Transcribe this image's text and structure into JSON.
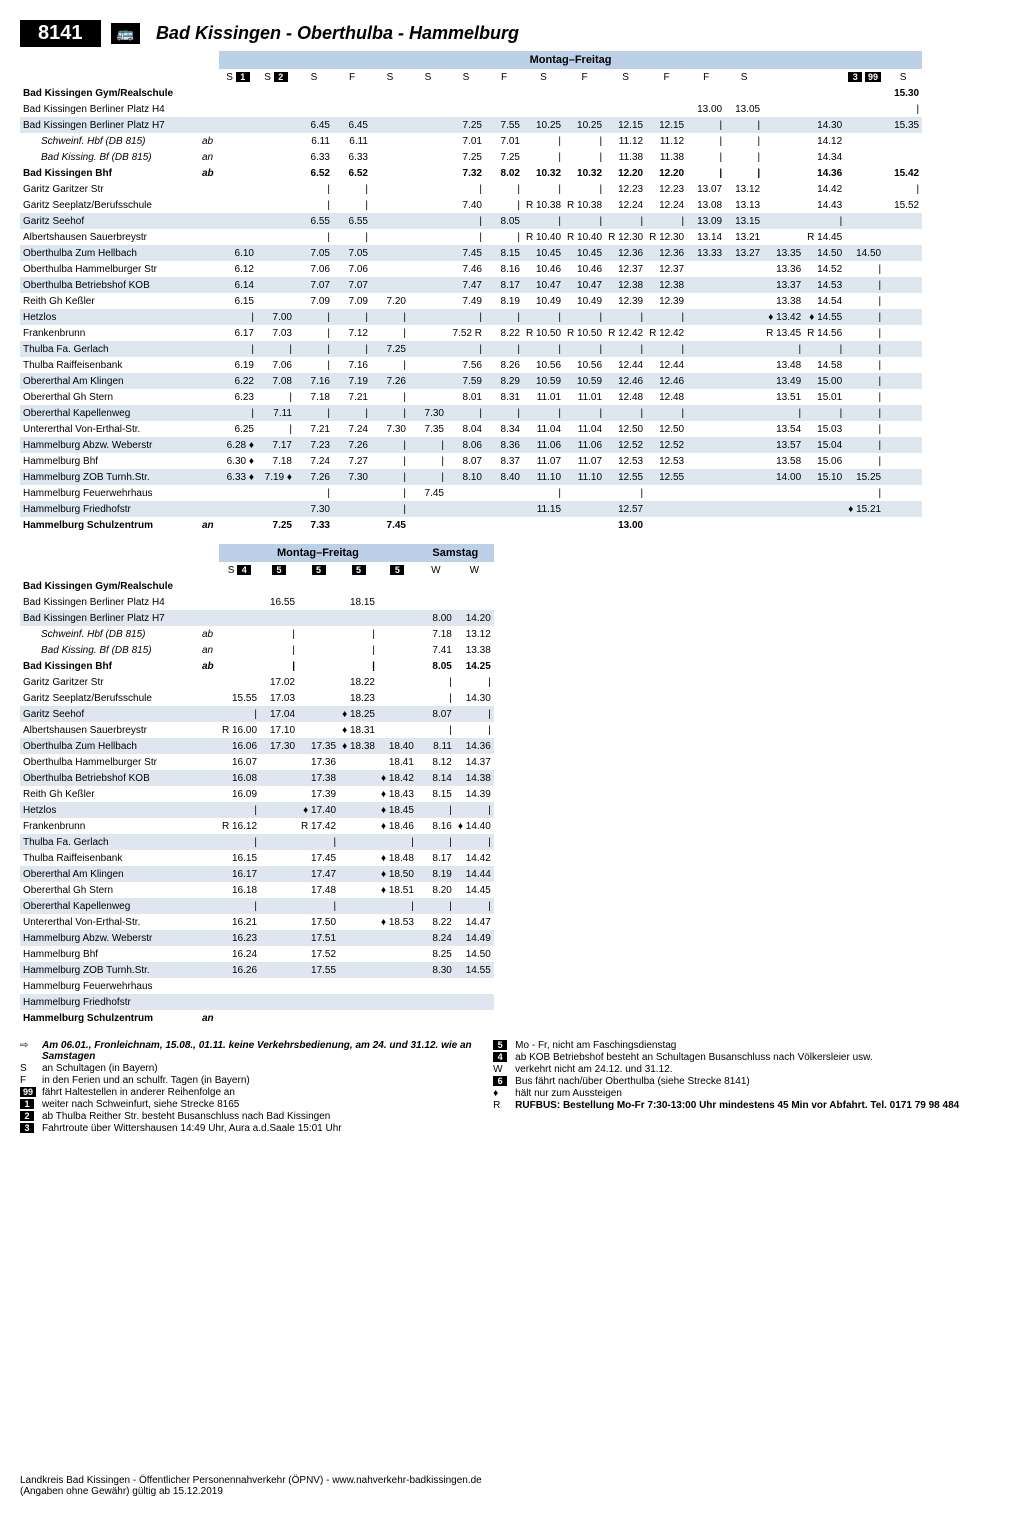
{
  "route_number": "8141",
  "route_title": "Bad Kissingen - Oberthulba - Hammelburg",
  "period1": "Montag–Freitag",
  "period2": "Samstag",
  "stops": [
    {
      "name": "Bad Kissingen Gym/Realschule",
      "q": "",
      "bold": true
    },
    {
      "name": "Bad Kissingen Berliner Platz H4",
      "q": ""
    },
    {
      "name": "Bad Kissingen Berliner Platz H7",
      "q": ""
    },
    {
      "name": "Schweinf. Hbf (DB 815)",
      "q": "ab",
      "indent": true
    },
    {
      "name": "Bad Kissing. Bf (DB 815)",
      "q": "an",
      "indent": true
    },
    {
      "name": "Bad Kissingen Bhf",
      "q": "ab",
      "bold": true
    },
    {
      "name": "Garitz Garitzer Str",
      "q": ""
    },
    {
      "name": "Garitz Seeplatz/Berufsschule",
      "q": ""
    },
    {
      "name": "Garitz Seehof",
      "q": ""
    },
    {
      "name": "Albertshausen Sauerbreystr",
      "q": ""
    },
    {
      "name": "Oberthulba Zum Hellbach",
      "q": ""
    },
    {
      "name": "Oberthulba Hammelburger Str",
      "q": ""
    },
    {
      "name": "Oberthulba Betriebshof KOB",
      "q": ""
    },
    {
      "name": "Reith Gh Keßler",
      "q": ""
    },
    {
      "name": "Hetzlos",
      "q": ""
    },
    {
      "name": "Frankenbrunn",
      "q": ""
    },
    {
      "name": "Thulba Fa. Gerlach",
      "q": ""
    },
    {
      "name": "Thulba Raiffeisenbank",
      "q": ""
    },
    {
      "name": "Obererthal Am Klingen",
      "q": ""
    },
    {
      "name": "Obererthal Gh Stern",
      "q": ""
    },
    {
      "name": "Obererthal Kapellenweg",
      "q": ""
    },
    {
      "name": "Untererthal Von-Erthal-Str.",
      "q": ""
    },
    {
      "name": "Hammelburg Abzw. Weberstr",
      "q": ""
    },
    {
      "name": "Hammelburg Bhf",
      "q": ""
    },
    {
      "name": "Hammelburg ZOB Turnh.Str.",
      "q": ""
    },
    {
      "name": "Hammelburg Feuerwehrhaus",
      "q": ""
    },
    {
      "name": "Hammelburg Friedhofstr",
      "q": ""
    },
    {
      "name": "Hammelburg Schulzentrum",
      "q": "an",
      "bold": true
    }
  ],
  "table1_headers": [
    "S ▮1",
    "S ▮2",
    "S",
    "F",
    "S",
    "S",
    "S",
    "F",
    "S",
    "F",
    "S",
    "F",
    "F",
    "S",
    "",
    "",
    "▮3 ▮99",
    "S"
  ],
  "table1_header_codes": [
    "S <span class='badge'>1</span>",
    "S <span class='badge'>2</span>",
    "S",
    "F",
    "S",
    "S",
    "S",
    "F",
    "S",
    "F",
    "S",
    "F",
    "F",
    "S",
    "",
    "",
    "<span class='badge'>3</span> <span class='badge'>99</span>",
    "S"
  ],
  "table1": [
    [
      "",
      "",
      "",
      "",
      "",
      "",
      "",
      "",
      "",
      "",
      "",
      "",
      "",
      "",
      "",
      "",
      "",
      "15.30"
    ],
    [
      "",
      "",
      "",
      "",
      "",
      "",
      "",
      "",
      "",
      "",
      "",
      "",
      "13.00",
      "13.05",
      "",
      "",
      "",
      "|"
    ],
    [
      "",
      "",
      "6.45",
      "6.45",
      "",
      "",
      "7.25",
      "7.55",
      "10.25",
      "10.25",
      "12.15",
      "12.15",
      "|",
      "|",
      "",
      "14.30",
      "",
      "15.35"
    ],
    [
      "",
      "",
      "6.11",
      "6.11",
      "",
      "",
      "7.01",
      "7.01",
      "|",
      "|",
      "11.12",
      "11.12",
      "|",
      "|",
      "",
      "14.12",
      "",
      ""
    ],
    [
      "",
      "",
      "6.33",
      "6.33",
      "",
      "",
      "7.25",
      "7.25",
      "|",
      "|",
      "11.38",
      "11.38",
      "|",
      "|",
      "",
      "14.34",
      "",
      ""
    ],
    [
      "",
      "",
      "6.52",
      "6.52",
      "",
      "",
      "7.32",
      "8.02",
      "10.32",
      "10.32",
      "12.20",
      "12.20",
      "|",
      "|",
      "",
      "14.36",
      "",
      "15.42"
    ],
    [
      "",
      "",
      "|",
      "|",
      "",
      "",
      "|",
      "|",
      "|",
      "|",
      "12.23",
      "12.23",
      "13.07",
      "13.12",
      "",
      "14.42",
      "",
      "|"
    ],
    [
      "",
      "",
      "|",
      "|",
      "",
      "",
      "7.40",
      "|",
      "R 10.38",
      "R 10.38",
      "12.24",
      "12.24",
      "13.08",
      "13.13",
      "",
      "14.43",
      "",
      "15.52"
    ],
    [
      "",
      "",
      "6.55",
      "6.55",
      "",
      "",
      "|",
      "8.05",
      "|",
      "|",
      "|",
      "|",
      "13.09",
      "13.15",
      "",
      "|",
      "",
      ""
    ],
    [
      "",
      "",
      "|",
      "|",
      "",
      "",
      "|",
      "|",
      "R 10.40",
      "R 10.40",
      "R 12.30",
      "R 12.30",
      "13.14",
      "13.21",
      "",
      "R 14.45",
      "",
      ""
    ],
    [
      "6.10",
      "",
      "7.05",
      "7.05",
      "",
      "",
      "7.45",
      "8.15",
      "10.45",
      "10.45",
      "12.36",
      "12.36",
      "13.33",
      "13.27",
      "13.35",
      "14.50",
      "14.50",
      ""
    ],
    [
      "6.12",
      "",
      "7.06",
      "7.06",
      "",
      "",
      "7.46",
      "8.16",
      "10.46",
      "10.46",
      "12.37",
      "12.37",
      "",
      "",
      "13.36",
      "14.52",
      "|",
      ""
    ],
    [
      "6.14",
      "",
      "7.07",
      "7.07",
      "",
      "",
      "7.47",
      "8.17",
      "10.47",
      "10.47",
      "12.38",
      "12.38",
      "",
      "",
      "13.37",
      "14.53",
      "|",
      ""
    ],
    [
      "6.15",
      "",
      "7.09",
      "7.09",
      "7.20",
      "",
      "7.49",
      "8.19",
      "10.49",
      "10.49",
      "12.39",
      "12.39",
      "",
      "",
      "13.38",
      "14.54",
      "|",
      ""
    ],
    [
      "|",
      "7.00",
      "|",
      "|",
      "|",
      "",
      "|",
      "|",
      "|",
      "|",
      "|",
      "|",
      "",
      "",
      "♦ 13.42",
      "♦ 14.55",
      "|",
      ""
    ],
    [
      "6.17",
      "7.03",
      "|",
      "7.12",
      "|",
      "",
      "7.52 R",
      "8.22",
      "R 10.50",
      "R 10.50",
      "R 12.42",
      "R 12.42",
      "",
      "",
      "R 13.45",
      "R 14.56",
      "|",
      ""
    ],
    [
      "|",
      "|",
      "|",
      "|",
      "7.25",
      "",
      "|",
      "|",
      "|",
      "|",
      "|",
      "|",
      "",
      "",
      "|",
      "|",
      "|",
      ""
    ],
    [
      "6.19",
      "7.06",
      "|",
      "7.16",
      "|",
      "",
      "7.56",
      "8.26",
      "10.56",
      "10.56",
      "12.44",
      "12.44",
      "",
      "",
      "13.48",
      "14.58",
      "|",
      ""
    ],
    [
      "6.22",
      "7.08",
      "7.16",
      "7.19",
      "7.26",
      "",
      "7.59",
      "8.29",
      "10.59",
      "10.59",
      "12.46",
      "12.46",
      "",
      "",
      "13.49",
      "15.00",
      "|",
      ""
    ],
    [
      "6.23",
      "|",
      "7.18",
      "7.21",
      "|",
      "",
      "8.01",
      "8.31",
      "11.01",
      "11.01",
      "12.48",
      "12.48",
      "",
      "",
      "13.51",
      "15.01",
      "|",
      ""
    ],
    [
      "|",
      "7.11",
      "|",
      "|",
      "|",
      "7.30",
      "|",
      "|",
      "|",
      "|",
      "|",
      "|",
      "",
      "",
      "|",
      "|",
      "|",
      ""
    ],
    [
      "6.25",
      "|",
      "7.21",
      "7.24",
      "7.30",
      "7.35",
      "8.04",
      "8.34",
      "11.04",
      "11.04",
      "12.50",
      "12.50",
      "",
      "",
      "13.54",
      "15.03",
      "|",
      ""
    ],
    [
      "6.28 ♦",
      "7.17",
      "7.23",
      "7.26",
      "|",
      "|",
      "8.06",
      "8.36",
      "11.06",
      "11.06",
      "12.52",
      "12.52",
      "",
      "",
      "13.57",
      "15.04",
      "|",
      ""
    ],
    [
      "6.30 ♦",
      "7.18",
      "7.24",
      "7.27",
      "|",
      "|",
      "8.07",
      "8.37",
      "11.07",
      "11.07",
      "12.53",
      "12.53",
      "",
      "",
      "13.58",
      "15.06",
      "|",
      ""
    ],
    [
      "6.33 ♦",
      "7.19 ♦",
      "7.26",
      "7.30",
      "|",
      "|",
      "8.10",
      "8.40",
      "11.10",
      "11.10",
      "12.55",
      "12.55",
      "",
      "",
      "14.00",
      "15.10",
      "15.25",
      ""
    ],
    [
      "",
      "",
      "|",
      "",
      "|",
      "7.45",
      "",
      "",
      "|",
      "",
      "|",
      "",
      "",
      "",
      "",
      "",
      "|",
      ""
    ],
    [
      "",
      "",
      "7.30",
      "",
      "|",
      "",
      "",
      "",
      "11.15",
      "",
      "12.57",
      "",
      "",
      "",
      "",
      "",
      "♦ 15.21",
      ""
    ],
    [
      "",
      "7.25",
      "7.33",
      "",
      "7.45",
      "",
      "",
      "",
      "",
      "",
      "13.00",
      "",
      "",
      "",
      "",
      "",
      "",
      ""
    ]
  ],
  "table1_highlight_rows": [
    2,
    8,
    10,
    12,
    14,
    16,
    18,
    20,
    22,
    24,
    26
  ],
  "table2_headers": [
    "S <span class='badge'>4</span>",
    "<span class='badge'>5</span>",
    "<span class='badge'>5</span>",
    "<span class='badge'>5</span>",
    "<span class='badge'>5</span>",
    "W",
    "W"
  ],
  "table2": [
    [
      "",
      "",
      "",
      "",
      "",
      "",
      ""
    ],
    [
      "",
      "16.55",
      "",
      "18.15",
      "",
      "",
      ""
    ],
    [
      "",
      "",
      "",
      "",
      "",
      "8.00",
      "14.20"
    ],
    [
      "",
      "|",
      "",
      "|",
      "",
      "7.18",
      "13.12"
    ],
    [
      "",
      "|",
      "",
      "|",
      "",
      "7.41",
      "13.38"
    ],
    [
      "",
      "|",
      "",
      "|",
      "",
      "8.05",
      "14.25"
    ],
    [
      "",
      "17.02",
      "",
      "18.22",
      "",
      "|",
      "|"
    ],
    [
      "15.55",
      "17.03",
      "",
      "18.23",
      "",
      "|",
      "14.30"
    ],
    [
      "|",
      "17.04",
      "",
      "♦ 18.25",
      "",
      "8.07",
      "|"
    ],
    [
      "R 16.00",
      "17.10",
      "",
      "♦ 18.31",
      "",
      "|",
      "|"
    ],
    [
      "16.06",
      "17.30",
      "17.35",
      "♦ 18.38",
      "18.40",
      "8.11",
      "14.36"
    ],
    [
      "16.07",
      "",
      "17.36",
      "",
      "18.41",
      "8.12",
      "14.37"
    ],
    [
      "16.08",
      "",
      "17.38",
      "",
      "♦ 18.42",
      "8.14",
      "14.38"
    ],
    [
      "16.09",
      "",
      "17.39",
      "",
      "♦ 18.43",
      "8.15",
      "14.39"
    ],
    [
      "|",
      "",
      "♦ 17.40",
      "",
      "♦ 18.45",
      "|",
      "|"
    ],
    [
      "R 16.12",
      "",
      "R 17.42",
      "",
      "♦ 18.46",
      "8.16",
      "♦ 14.40"
    ],
    [
      "|",
      "",
      "|",
      "",
      "|",
      "|",
      "|"
    ],
    [
      "16.15",
      "",
      "17.45",
      "",
      "♦ 18.48",
      "8.17",
      "14.42"
    ],
    [
      "16.17",
      "",
      "17.47",
      "",
      "♦ 18.50",
      "8.19",
      "14.44"
    ],
    [
      "16.18",
      "",
      "17.48",
      "",
      "♦ 18.51",
      "8.20",
      "14.45"
    ],
    [
      "|",
      "",
      "|",
      "",
      "|",
      "|",
      "|"
    ],
    [
      "16.21",
      "",
      "17.50",
      "",
      "♦ 18.53",
      "8.22",
      "14.47"
    ],
    [
      "16.23",
      "",
      "17.51",
      "",
      "",
      "8.24",
      "14.49"
    ],
    [
      "16.24",
      "",
      "17.52",
      "",
      "",
      "8.25",
      "14.50"
    ],
    [
      "16.26",
      "",
      "17.55",
      "",
      "",
      "8.30",
      "14.55"
    ],
    [
      "",
      "",
      "",
      "",
      "",
      "",
      ""
    ],
    [
      "",
      "",
      "",
      "",
      "",
      "",
      ""
    ],
    [
      "",
      "",
      "",
      "",
      "",
      "",
      ""
    ]
  ],
  "table2_highlight_rows": [
    2,
    8,
    10,
    12,
    14,
    16,
    18,
    20,
    22,
    24,
    26
  ],
  "footnotes_left": [
    {
      "sym": "⇨",
      "txt": "Am 06.01., Fronleichnam, 15.08., 01.11. keine Verkehrsbedienung, am 24. und 31.12. wie an Samstagen",
      "bi": true
    },
    {
      "sym": "S",
      "txt": "an Schultagen (in Bayern)"
    },
    {
      "sym": "F",
      "txt": "in den Ferien und an schulfr. Tagen (in Bayern)"
    },
    {
      "sym": "▮99",
      "txt": "fährt Haltestellen in anderer Reihenfolge an"
    },
    {
      "sym": "▮1",
      "txt": "weiter nach Schweinfurt, siehe Strecke 8165"
    },
    {
      "sym": "▮2",
      "txt": "ab Thulba Reither Str. besteht Busanschluss nach Bad Kissingen"
    },
    {
      "sym": "▮3",
      "txt": "Fahrtroute über Wittershausen 14:49 Uhr, Aura a.d.Saale 15:01 Uhr"
    }
  ],
  "footnotes_right": [
    {
      "sym": "▮5",
      "txt": "Mo - Fr, nicht am Faschingsdienstag"
    },
    {
      "sym": "▮4",
      "txt": "ab KOB Betriebshof besteht an Schultagen Busanschluss nach Völkersleier usw."
    },
    {
      "sym": "W",
      "txt": "verkehrt nicht am 24.12. und 31.12."
    },
    {
      "sym": "▮6",
      "txt": "Bus fährt nach/über Oberthulba (siehe Strecke 8141)"
    },
    {
      "sym": "♦",
      "txt": "hält nur zum Aussteigen"
    },
    {
      "sym": "R",
      "txt": "RUFBUS: Bestellung Mo-Fr 7:30-13:00 Uhr mindestens 45 Min vor Abfahrt. Tel. 0171 79 98 484",
      "bold": true
    }
  ],
  "footer1": "Landkreis Bad Kissingen - Öffentlicher Personennahverkehr (ÖPNV) - www.nahverkehr-badkissingen.de",
  "footer2": "(Angaben ohne Gewähr) gültig ab 15.12.2019"
}
